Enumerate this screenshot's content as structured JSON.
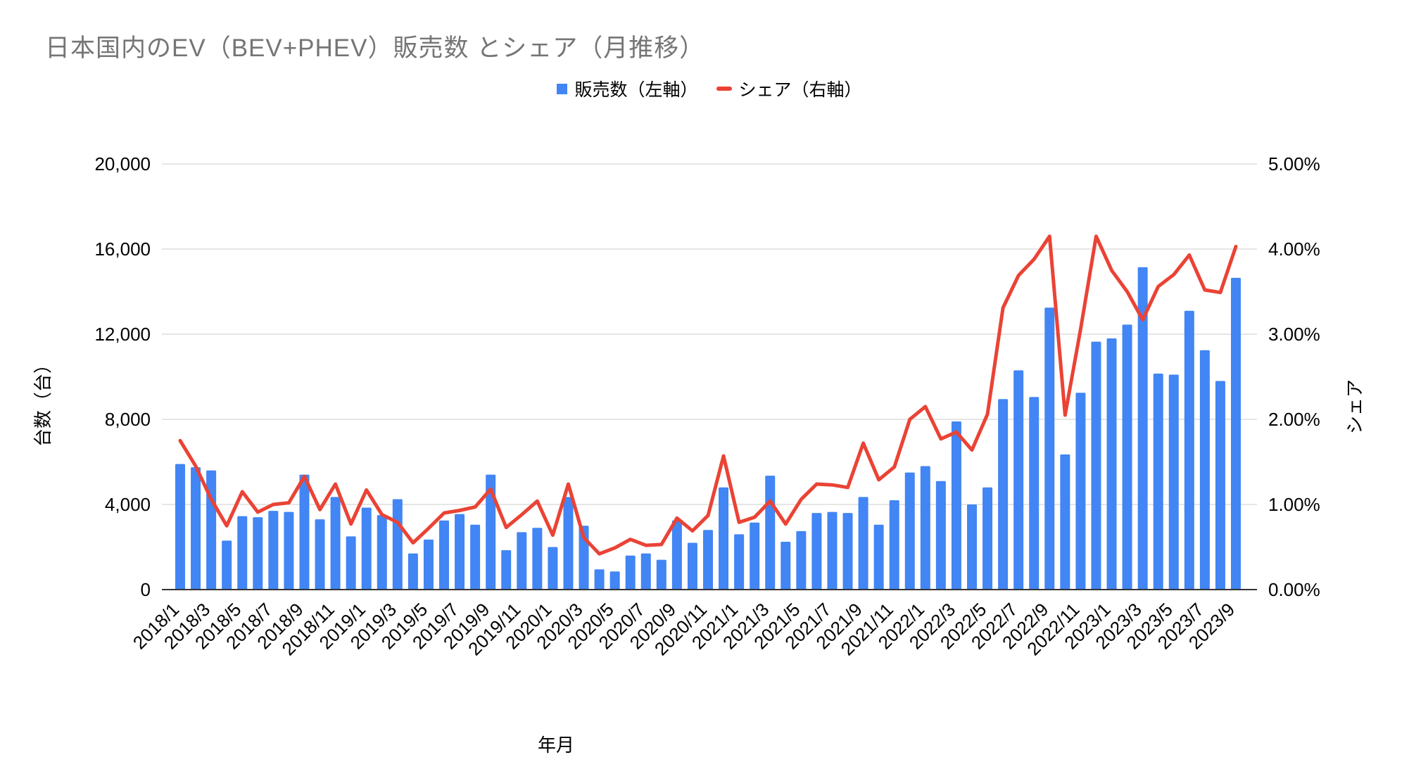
{
  "title": "日本国内のEV（BEV+PHEV）販売数 とシェア（月推移）",
  "legend": {
    "sales_label": "販売数（左軸）",
    "share_label": "シェア（右軸）"
  },
  "colors": {
    "bar": "#4285F4",
    "line": "#EA4335",
    "grid": "#cccccc",
    "axis_line": "#333333",
    "title_text": "#757575",
    "tick_text": "#000000"
  },
  "chart_data": {
    "type": "combo-bar-line",
    "title": "日本国内のEV（BEV+PHEV）販売数 とシェア（月推移）",
    "x_axis_title": "年月",
    "left_axis": {
      "title": "台数（台）",
      "range": [
        0,
        20000
      ],
      "tick_labels": [
        "0",
        "4,000",
        "8,000",
        "12,000",
        "16,000",
        "20,000"
      ]
    },
    "right_axis": {
      "title": "シェア",
      "range": [
        0,
        5
      ],
      "tick_labels": [
        "0.00%",
        "1.00%",
        "2.00%",
        "3.00%",
        "4.00%",
        "5.00%"
      ]
    },
    "x_tick_labels_shown": [
      "2018/1",
      "2018/3",
      "2018/5",
      "2018/7",
      "2018/9",
      "2018/11",
      "2019/1",
      "2019/3",
      "2019/5",
      "2019/7",
      "2019/9",
      "2019/11",
      "2020/1",
      "2020/3",
      "2020/5",
      "2020/7",
      "2020/9",
      "2020/11",
      "2021/1",
      "2021/3",
      "2021/5",
      "2021/7",
      "2021/9",
      "2021/11",
      "2022/1",
      "2022/3",
      "2022/5",
      "2022/7",
      "2022/9",
      "2022/11",
      "2023/1",
      "2023/3",
      "2023/5",
      "2023/7",
      "2023/9"
    ],
    "categories": [
      "2018/1",
      "2018/2",
      "2018/3",
      "2018/4",
      "2018/5",
      "2018/6",
      "2018/7",
      "2018/8",
      "2018/9",
      "2018/10",
      "2018/11",
      "2018/12",
      "2019/1",
      "2019/2",
      "2019/3",
      "2019/4",
      "2019/5",
      "2019/6",
      "2019/7",
      "2019/8",
      "2019/9",
      "2019/10",
      "2019/11",
      "2019/12",
      "2020/1",
      "2020/2",
      "2020/3",
      "2020/4",
      "2020/5",
      "2020/6",
      "2020/7",
      "2020/8",
      "2020/9",
      "2020/10",
      "2020/11",
      "2020/12",
      "2021/1",
      "2021/2",
      "2021/3",
      "2021/4",
      "2021/5",
      "2021/6",
      "2021/7",
      "2021/8",
      "2021/9",
      "2021/10",
      "2021/11",
      "2021/12",
      "2022/1",
      "2022/2",
      "2022/3",
      "2022/4",
      "2022/5",
      "2022/6",
      "2022/7",
      "2022/8",
      "2022/9",
      "2022/10",
      "2022/11",
      "2022/12",
      "2023/1",
      "2023/2",
      "2023/3",
      "2023/4",
      "2023/5",
      "2023/6",
      "2023/7",
      "2023/8",
      "2023/9"
    ],
    "series": [
      {
        "name": "販売数（左軸）",
        "type": "bar",
        "axis": "left",
        "values": [
          5900,
          5750,
          5600,
          2300,
          3450,
          3400,
          3700,
          3650,
          5400,
          3300,
          4350,
          2500,
          3850,
          3500,
          4250,
          1700,
          2350,
          3250,
          3550,
          3050,
          5400,
          1850,
          2700,
          2900,
          2000,
          4350,
          3000,
          950,
          850,
          1600,
          1700,
          1400,
          3250,
          2200,
          2800,
          4800,
          2600,
          3150,
          5350,
          2250,
          2750,
          3600,
          3650,
          3600,
          4350,
          3050,
          4200,
          5500,
          5800,
          5100,
          7900,
          4000,
          4800,
          8950,
          10300,
          9050,
          13250,
          6350,
          9250,
          11650,
          11800,
          12450,
          15150,
          10150,
          10100,
          13100,
          11250,
          9800,
          14650
        ]
      },
      {
        "name": "シェア（右軸）",
        "type": "line",
        "axis": "right",
        "values": [
          1.75,
          1.45,
          1.06,
          0.75,
          1.15,
          0.91,
          1.0,
          1.02,
          1.33,
          0.94,
          1.24,
          0.77,
          1.17,
          0.88,
          0.79,
          0.55,
          0.72,
          0.9,
          0.93,
          0.97,
          1.18,
          0.73,
          0.88,
          1.04,
          0.64,
          1.24,
          0.61,
          0.42,
          0.49,
          0.59,
          0.52,
          0.53,
          0.84,
          0.69,
          0.87,
          1.57,
          0.79,
          0.85,
          1.04,
          0.77,
          1.06,
          1.24,
          1.23,
          1.2,
          1.72,
          1.29,
          1.44,
          2.0,
          2.15,
          1.77,
          1.85,
          1.64,
          2.06,
          3.31,
          3.69,
          3.88,
          4.15,
          2.05,
          3.06,
          4.15,
          3.75,
          3.5,
          3.17,
          3.56,
          3.7,
          3.93,
          3.52,
          3.49,
          4.03
        ]
      }
    ],
    "grid": "horizontal-only",
    "legend_position": "top-center"
  }
}
